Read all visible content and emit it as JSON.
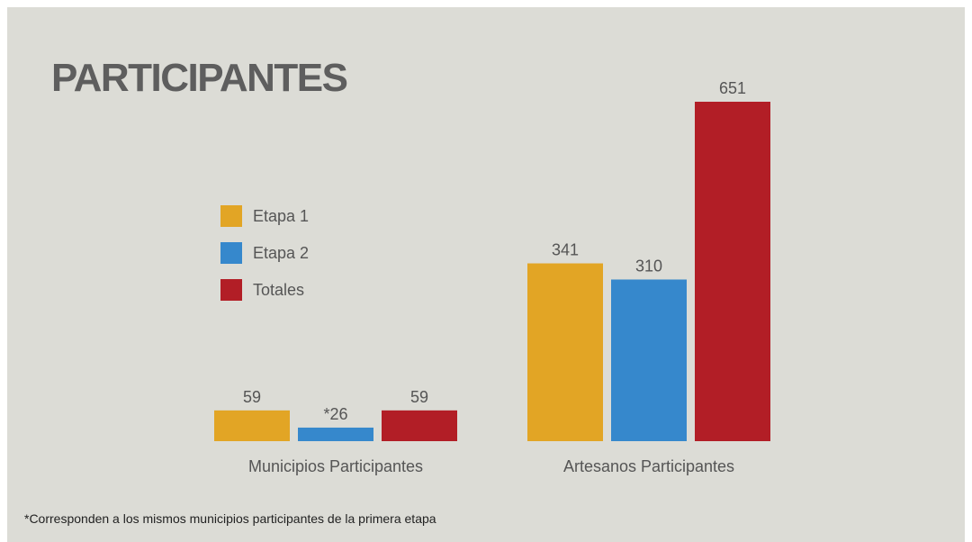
{
  "title": "PARTICIPANTES",
  "footnote": "*Corresponden a los mismos municipios participantes de la primera etapa",
  "colors": {
    "background": "#dcdcd6",
    "etapa1": "#e2a525",
    "etapa2": "#3688cc",
    "totales": "#b21e26",
    "text": "#555555"
  },
  "chart_data": {
    "type": "bar",
    "title": "PARTICIPANTES",
    "categories": [
      "Municipios Participantes",
      "Artesanos Participantes"
    ],
    "series": [
      {
        "name": "Etapa 1",
        "color": "#e2a525",
        "values": [
          59,
          341
        ],
        "labels": [
          "59",
          "341"
        ]
      },
      {
        "name": "Etapa 2",
        "color": "#3688cc",
        "values": [
          26,
          310
        ],
        "labels": [
          "*26",
          "310"
        ]
      },
      {
        "name": "Totales",
        "color": "#b21e26",
        "values": [
          59,
          651
        ],
        "labels": [
          "59",
          "651"
        ]
      }
    ],
    "ylim": [
      0,
      651
    ],
    "grid": false,
    "legend_position": "left"
  }
}
